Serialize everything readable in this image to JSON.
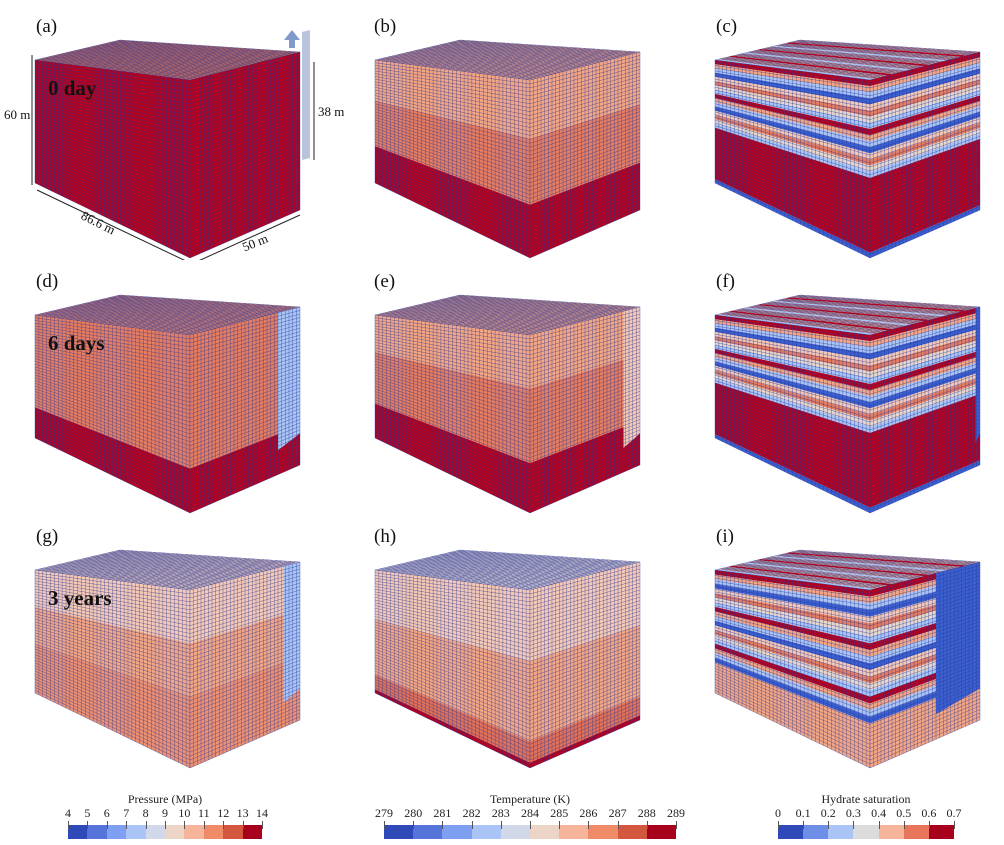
{
  "panels": [
    {
      "label": "(a)",
      "time_label": "0 day"
    },
    {
      "label": "(b)"
    },
    {
      "label": "(c)"
    },
    {
      "label": "(d)",
      "time_label": "6 days"
    },
    {
      "label": "(e)"
    },
    {
      "label": "(f)"
    },
    {
      "label": "(g)",
      "time_label": "3 years"
    },
    {
      "label": "(h)"
    },
    {
      "label": "(i)"
    }
  ],
  "dimensions": {
    "height": "60 m",
    "length": "86.6 m",
    "width": "50 m",
    "well_depth": "38 m"
  },
  "colorbars": [
    {
      "title": "Pressure (MPa)",
      "ticks": [
        "4",
        "5",
        "6",
        "7",
        "8",
        "9",
        "10",
        "11",
        "12",
        "13",
        "14"
      ],
      "colors": [
        "#3049b8",
        "#5573d9",
        "#7fa0f2",
        "#aac4f7",
        "#d0d8ea",
        "#ecd5c6",
        "#f6b59a",
        "#f08b68",
        "#d3563f",
        "#a8001c"
      ]
    },
    {
      "title": "Temperature (K)",
      "ticks": [
        "279",
        "280",
        "281",
        "282",
        "283",
        "284",
        "285",
        "286",
        "287",
        "288",
        "289"
      ],
      "colors": [
        "#3049b8",
        "#5573d9",
        "#7fa0f2",
        "#aac4f7",
        "#d0d8ea",
        "#ecd5c6",
        "#f6b59a",
        "#f08b68",
        "#d3563f",
        "#a8001c"
      ]
    },
    {
      "title": "Hydrate saturation",
      "ticks": [
        "0",
        "0.1",
        "0.2",
        "0.3",
        "0.4",
        "0.5",
        "0.6",
        "0.7"
      ],
      "colors": [
        "#3049b8",
        "#6d8fe8",
        "#aac4f7",
        "#dcdcdc",
        "#f6b59a",
        "#e8765a",
        "#a8001c"
      ]
    }
  ]
}
